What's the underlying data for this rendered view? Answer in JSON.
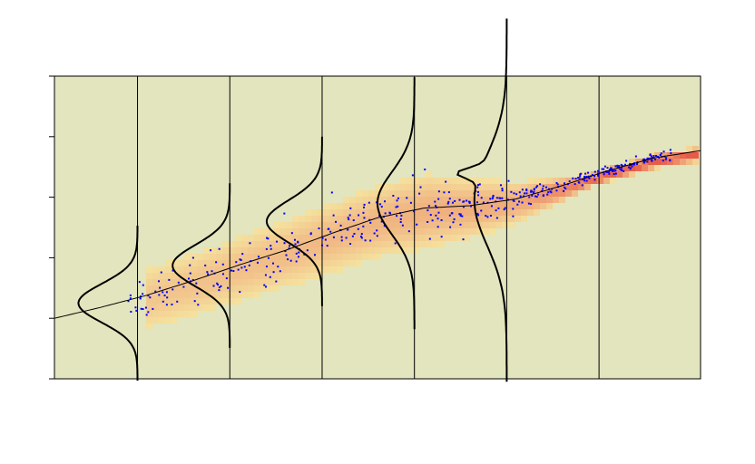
{
  "chart_data": {
    "type": "scatter",
    "title": "",
    "xlabel": "",
    "ylabel": "",
    "xlim": [
      0,
      7
    ],
    "ylim": [
      0,
      5
    ],
    "grid": false,
    "legend": "none",
    "vertical_lines_x": [
      0.9,
      1.9,
      2.9,
      3.9,
      4.9,
      5.9
    ],
    "trend_curve": {
      "x": [
        0,
        0.5,
        1,
        1.5,
        2,
        2.5,
        3,
        3.5,
        4,
        4.5,
        5,
        5.5,
        6,
        6.5,
        7
      ],
      "y": [
        1.0,
        1.18,
        1.38,
        1.62,
        1.88,
        2.12,
        2.4,
        2.66,
        2.82,
        2.86,
        2.97,
        3.19,
        3.44,
        3.65,
        3.77
      ]
    },
    "density_columns": [
      {
        "x": 0.9,
        "center": 1.25,
        "sd": 0.32,
        "scale": 0.64
      },
      {
        "x": 1.9,
        "center": 1.87,
        "sd": 0.34,
        "scale": 0.62
      },
      {
        "x": 2.9,
        "center": 2.6,
        "sd": 0.35,
        "scale": 0.6
      },
      {
        "x": 3.9,
        "center": 2.9,
        "sd": 0.52,
        "scale": 0.4
      },
      {
        "x": 4.9,
        "center": 2.95,
        "sd": 0.75,
        "scale": 0.35,
        "mode2": 3.4,
        "mode2_sd": 0.08,
        "mode2_scale": 0.25
      }
    ],
    "points_seed": 7,
    "colors": {
      "panel": "#e2e5bd",
      "density_low": "#f7e09a",
      "density_high": "#e84a3a",
      "points": "#0000ff",
      "lines": "#000000"
    }
  }
}
